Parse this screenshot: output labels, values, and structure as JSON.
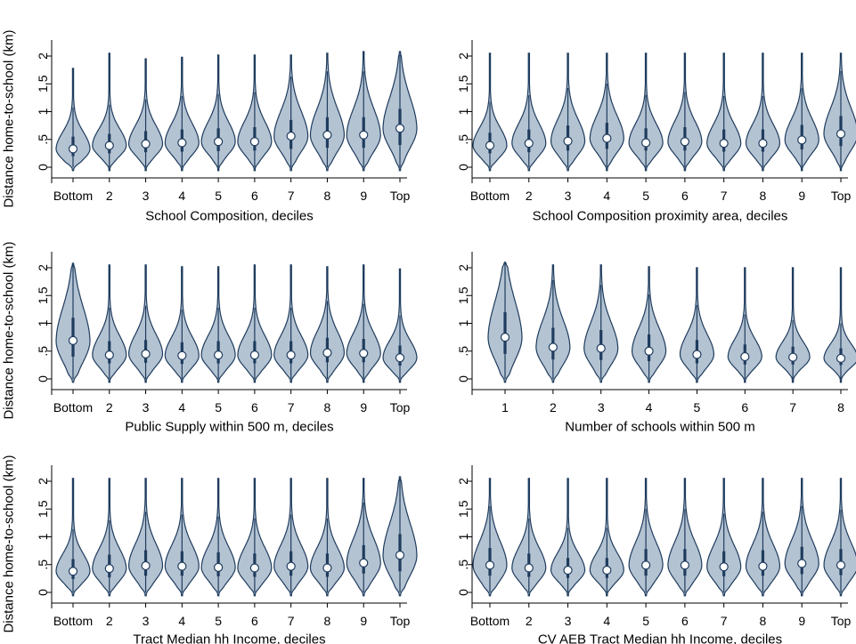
{
  "figure": {
    "style": {
      "violin_fill": "#b4c3d2",
      "violin_stroke": "#1f3c5e",
      "box_color": "#1f3c5e",
      "median_fill": "#ffffff",
      "axis_color": "#000000"
    }
  },
  "chart_data": [
    {
      "type": "violin",
      "xlabel": "School Composition, deciles",
      "ylabel": "Distance home-to-school (km)",
      "ylim": [
        0,
        2
      ],
      "yticks": [
        0,
        0.5,
        1,
        1.5,
        2
      ],
      "ytick_labels": [
        "0",
        ".5",
        "1",
        "1.5",
        "2"
      ],
      "categories": [
        "Bottom",
        "2",
        "3",
        "4",
        "5",
        "6",
        "7",
        "8",
        "9",
        "Top"
      ],
      "medians": [
        0.33,
        0.39,
        0.42,
        0.44,
        0.46,
        0.46,
        0.56,
        0.58,
        0.58,
        0.7
      ],
      "maxima": [
        1.78,
        2.05,
        1.95,
        1.98,
        2.02,
        2.02,
        2.02,
        2.05,
        2.08,
        2.08
      ],
      "q1": [
        0.2,
        0.25,
        0.27,
        0.28,
        0.29,
        0.3,
        0.33,
        0.35,
        0.35,
        0.4
      ],
      "q3": [
        0.55,
        0.6,
        0.65,
        0.68,
        0.7,
        0.72,
        0.85,
        0.9,
        0.9,
        1.05
      ],
      "grid": false
    },
    {
      "type": "violin",
      "xlabel": "School Composition proximity area, deciles",
      "ylabel": "",
      "ylim": [
        0,
        2
      ],
      "yticks": [
        0,
        0.5,
        1,
        1.5,
        2
      ],
      "ytick_labels": [
        "0",
        ".5",
        "1",
        "1.5",
        "2"
      ],
      "categories": [
        "Bottom",
        "2",
        "3",
        "4",
        "5",
        "6",
        "7",
        "8",
        "9",
        "Top"
      ],
      "medians": [
        0.39,
        0.43,
        0.47,
        0.52,
        0.44,
        0.46,
        0.43,
        0.43,
        0.49,
        0.6
      ],
      "maxima": [
        2.05,
        2.05,
        2.05,
        2.05,
        2.05,
        2.05,
        2.05,
        2.05,
        2.05,
        2.05
      ],
      "q1": [
        0.25,
        0.27,
        0.3,
        0.33,
        0.3,
        0.3,
        0.28,
        0.28,
        0.32,
        0.38
      ],
      "q3": [
        0.62,
        0.68,
        0.75,
        0.8,
        0.7,
        0.72,
        0.68,
        0.68,
        0.76,
        0.92
      ],
      "grid": false
    },
    {
      "type": "violin",
      "xlabel": "Public Supply within 500 m, deciles",
      "ylabel": "Distance home-to-school (km)",
      "ylim": [
        0,
        2
      ],
      "yticks": [
        0,
        0.5,
        1,
        1.5,
        2
      ],
      "ytick_labels": [
        "0",
        ".5",
        "1",
        "1.5",
        "2"
      ],
      "categories": [
        "Bottom",
        "2",
        "3",
        "4",
        "5",
        "6",
        "7",
        "8",
        "9",
        "Top"
      ],
      "medians": [
        0.69,
        0.43,
        0.45,
        0.42,
        0.43,
        0.43,
        0.43,
        0.47,
        0.46,
        0.38
      ],
      "maxima": [
        2.08,
        2.05,
        2.05,
        2.02,
        2.02,
        2.05,
        2.05,
        2.02,
        2.05,
        1.98
      ],
      "q1": [
        0.4,
        0.28,
        0.29,
        0.27,
        0.28,
        0.28,
        0.28,
        0.3,
        0.3,
        0.24
      ],
      "q3": [
        1.1,
        0.68,
        0.7,
        0.66,
        0.68,
        0.68,
        0.68,
        0.74,
        0.72,
        0.6
      ],
      "grid": false
    },
    {
      "type": "violin",
      "xlabel": "Number of schools within 500 m",
      "ylabel": "",
      "ylim": [
        0,
        2
      ],
      "yticks": [
        0,
        0.5,
        1,
        1.5,
        2
      ],
      "ytick_labels": [
        "0",
        ".5",
        "1",
        "1.5",
        "2"
      ],
      "categories": [
        "1",
        "2",
        "3",
        "4",
        "5",
        "6",
        "7",
        "8"
      ],
      "medians": [
        0.75,
        0.57,
        0.55,
        0.5,
        0.44,
        0.4,
        0.39,
        0.37
      ],
      "maxima": [
        2.1,
        2.05,
        2.05,
        2.02,
        2.0,
        2.0,
        2.0,
        2.0
      ],
      "q1": [
        0.45,
        0.35,
        0.34,
        0.32,
        0.28,
        0.26,
        0.26,
        0.25
      ],
      "q3": [
        1.2,
        0.92,
        0.88,
        0.8,
        0.7,
        0.62,
        0.58,
        0.55
      ],
      "grid": false
    },
    {
      "type": "violin",
      "xlabel": "Tract Median hh Income, deciles",
      "ylabel": "Distance home-to-school (km)",
      "ylim": [
        0,
        2
      ],
      "yticks": [
        0,
        0.5,
        1,
        1.5,
        2
      ],
      "ytick_labels": [
        "0",
        ".5",
        "1",
        "1.5",
        "2"
      ],
      "categories": [
        "Bottom",
        "2",
        "3",
        "4",
        "5",
        "6",
        "7",
        "8",
        "9",
        "Top"
      ],
      "medians": [
        0.38,
        0.43,
        0.48,
        0.47,
        0.45,
        0.44,
        0.47,
        0.44,
        0.53,
        0.67
      ],
      "maxima": [
        2.05,
        2.05,
        2.05,
        2.05,
        2.05,
        2.05,
        2.05,
        2.05,
        2.05,
        2.08
      ],
      "q1": [
        0.24,
        0.27,
        0.3,
        0.3,
        0.29,
        0.28,
        0.3,
        0.28,
        0.34,
        0.38
      ],
      "q3": [
        0.6,
        0.68,
        0.76,
        0.74,
        0.72,
        0.7,
        0.74,
        0.7,
        0.85,
        1.05
      ],
      "grid": false
    },
    {
      "type": "violin",
      "xlabel": "CV AEB Tract Median hh Income, deciles",
      "ylabel": "",
      "ylim": [
        0,
        2
      ],
      "yticks": [
        0,
        0.5,
        1,
        1.5,
        2
      ],
      "ytick_labels": [
        "0",
        ".5",
        "1",
        "1.5",
        "2"
      ],
      "categories": [
        "Bottom",
        "2",
        "3",
        "4",
        "5",
        "6",
        "7",
        "8",
        "9",
        "Top"
      ],
      "medians": [
        0.49,
        0.44,
        0.4,
        0.4,
        0.49,
        0.49,
        0.46,
        0.47,
        0.52,
        0.49
      ],
      "maxima": [
        2.05,
        2.05,
        2.05,
        2.05,
        2.05,
        2.05,
        2.05,
        2.05,
        2.05,
        2.05
      ],
      "q1": [
        0.3,
        0.28,
        0.26,
        0.26,
        0.3,
        0.3,
        0.29,
        0.3,
        0.33,
        0.31
      ],
      "q3": [
        0.8,
        0.7,
        0.62,
        0.62,
        0.78,
        0.78,
        0.74,
        0.76,
        0.82,
        0.78
      ],
      "grid": false
    }
  ]
}
